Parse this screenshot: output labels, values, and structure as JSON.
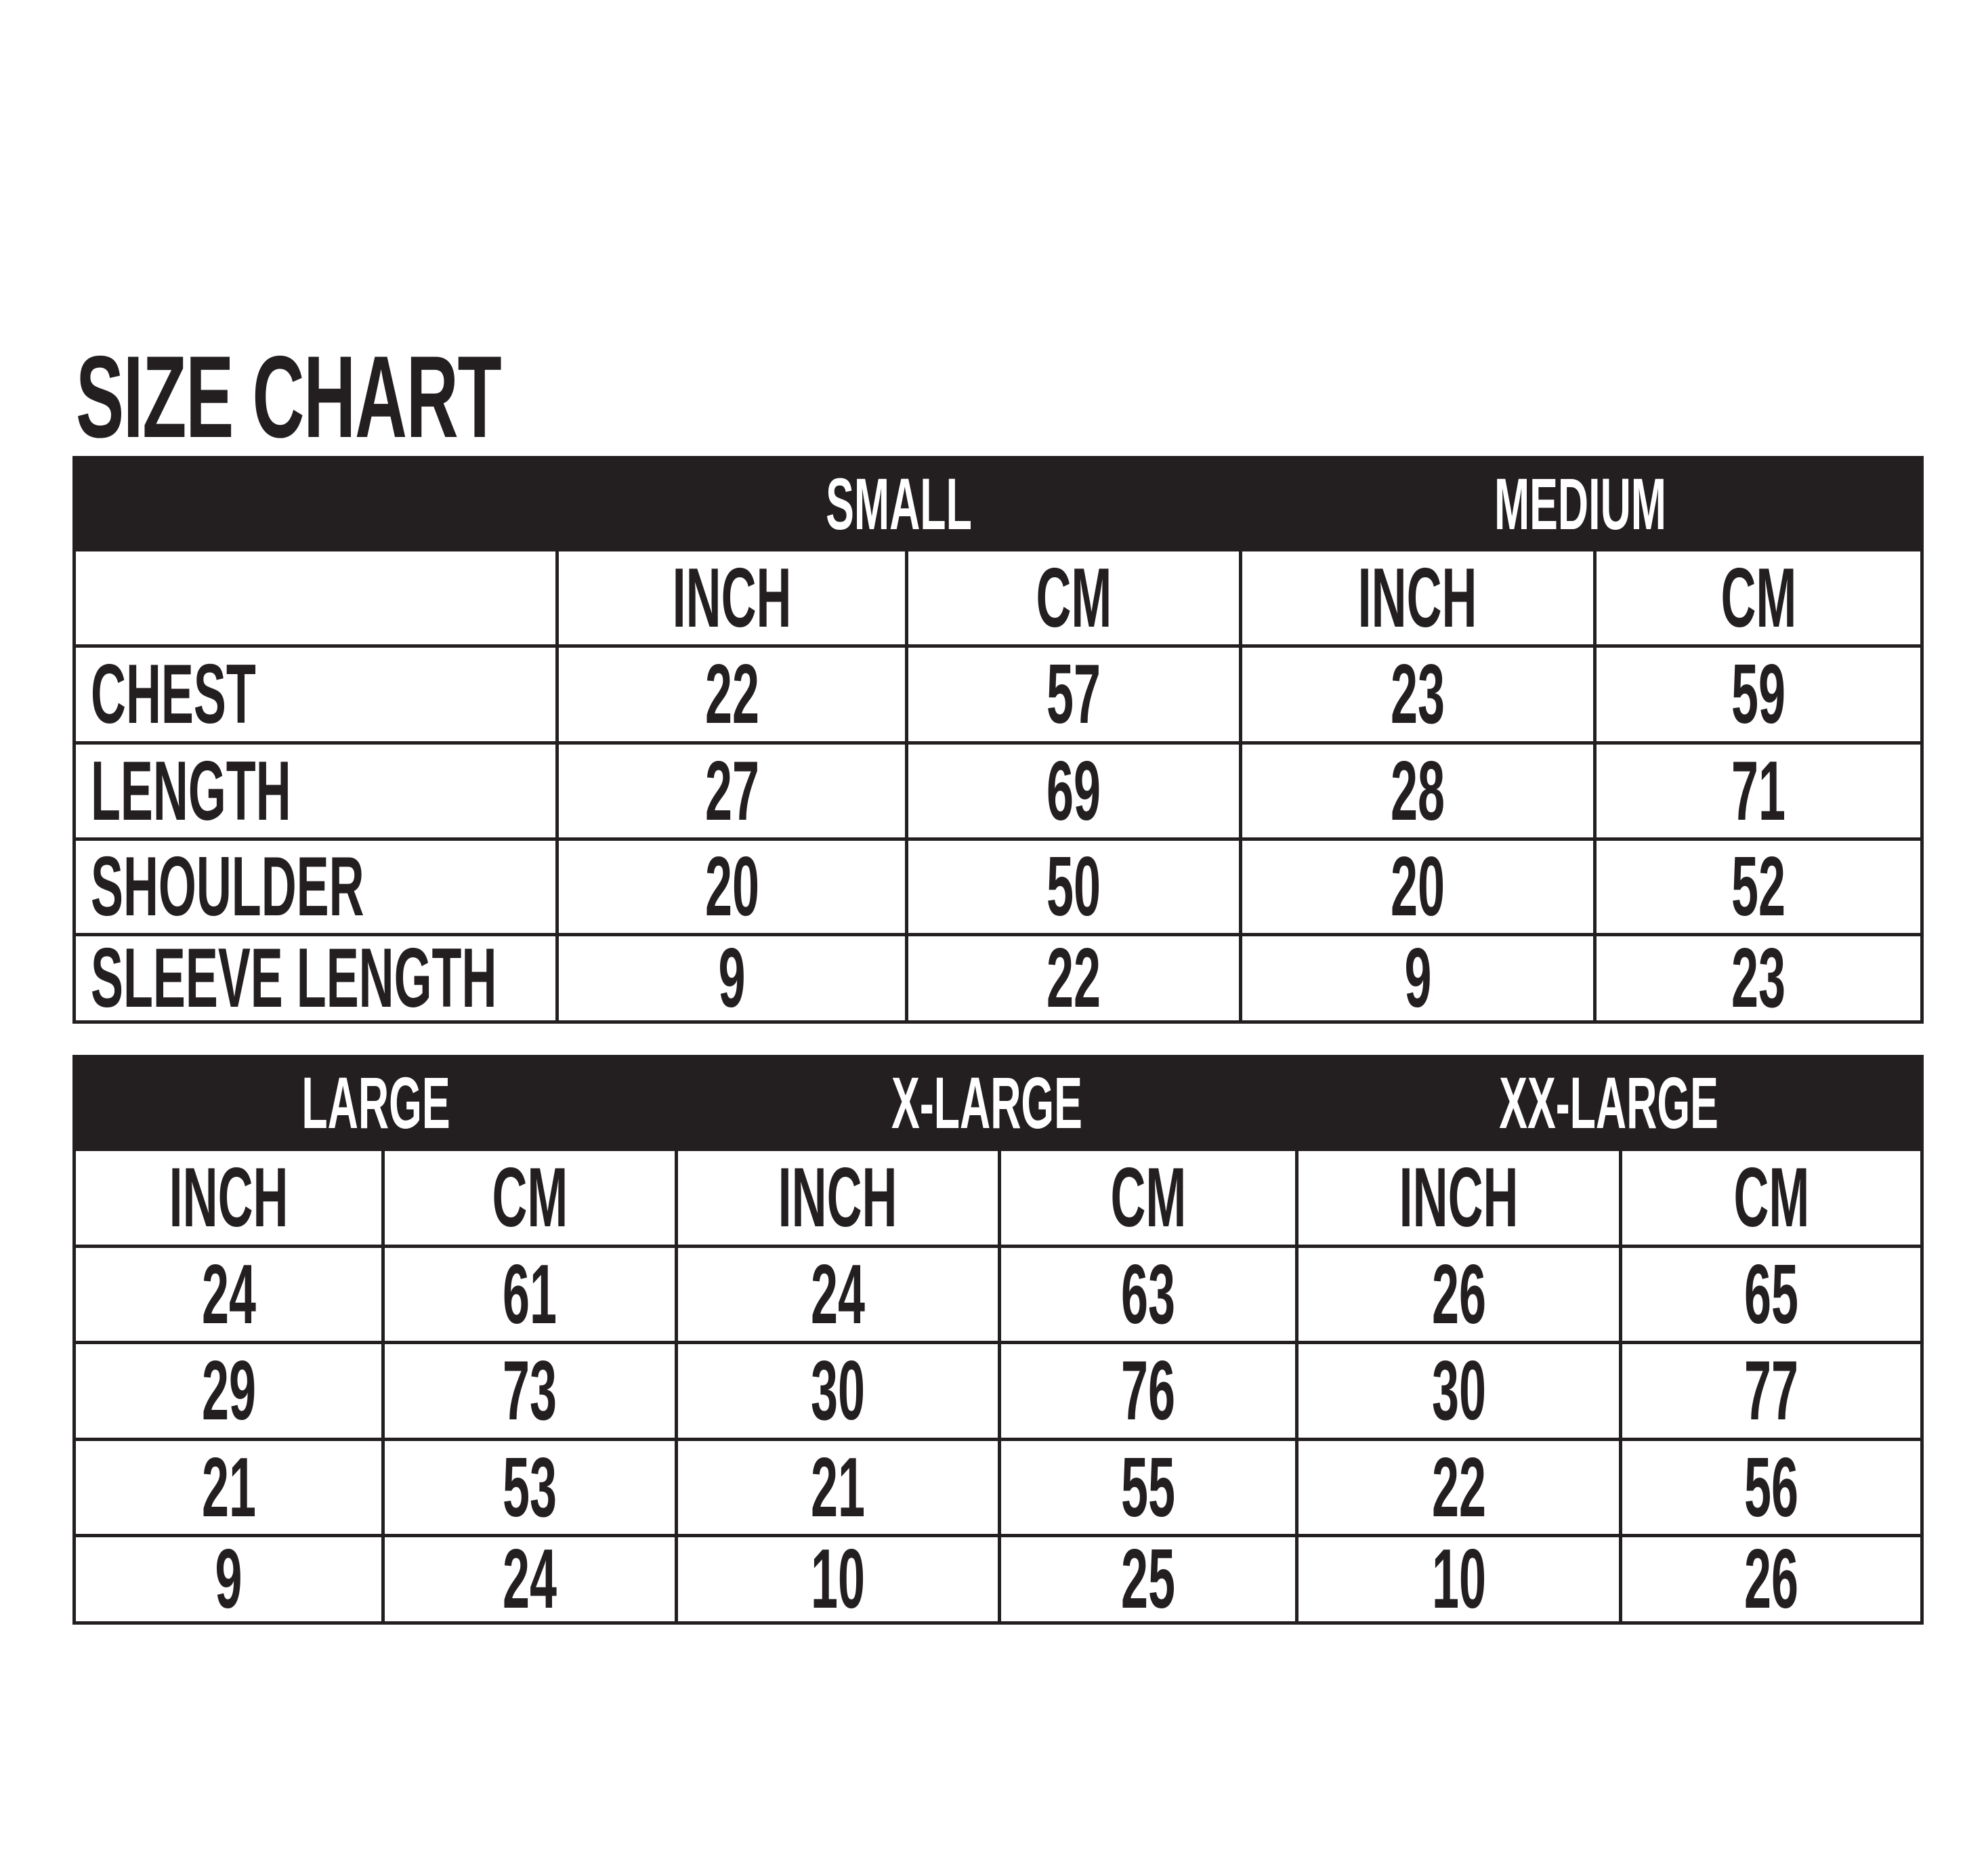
{
  "title": "SIZE CHART",
  "unit_labels": {
    "inch": "INCH",
    "cm": "CM"
  },
  "colors": {
    "ink": "#231f20",
    "background": "#ffffff"
  },
  "table1": {
    "sizes": [
      "SMALL",
      "MEDIUM"
    ],
    "rows": [
      {
        "label": "CHEST",
        "values": [
          "22",
          "57",
          "23",
          "59"
        ]
      },
      {
        "label": "LENGTH",
        "values": [
          "27",
          "69",
          "28",
          "71"
        ]
      },
      {
        "label": "SHOULDER",
        "values": [
          "20",
          "50",
          "20",
          "52"
        ]
      },
      {
        "label": "SLEEVE LENGTH",
        "values": [
          "9",
          "22",
          "9",
          "23"
        ]
      }
    ]
  },
  "table2": {
    "sizes": [
      "LARGE",
      "X-LARGE",
      "XX-LARGE"
    ],
    "rows": [
      {
        "values": [
          "24",
          "61",
          "24",
          "63",
          "26",
          "65"
        ]
      },
      {
        "values": [
          "29",
          "73",
          "30",
          "76",
          "30",
          "77"
        ]
      },
      {
        "values": [
          "21",
          "53",
          "21",
          "55",
          "22",
          "56"
        ]
      },
      {
        "values": [
          "9",
          "24",
          "10",
          "25",
          "10",
          "26"
        ]
      }
    ]
  }
}
